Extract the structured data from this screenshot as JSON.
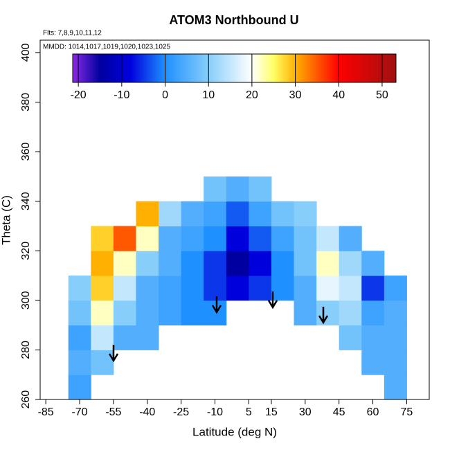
{
  "chart_data": {
    "type": "heatmap",
    "title": "ATOM3 Northbound U",
    "subtitle": "Flts: 7,8,9,10,11,12",
    "annotation": "MMDD: 1014,1017,1019,1020,1023,1025",
    "xlabel": "Latitude (deg N)",
    "ylabel": "Theta (C)",
    "x": [
      -70,
      -60,
      -50,
      -40,
      -30,
      -20,
      -10,
      0,
      10,
      20,
      30,
      40,
      50,
      60,
      70
    ],
    "y": [
      265,
      275,
      285,
      295,
      305,
      315,
      325,
      335,
      345
    ],
    "z": [
      [
        3,
        null,
        null,
        null,
        null,
        null,
        null,
        null,
        null,
        null,
        null,
        null,
        null,
        null,
        5
      ],
      [
        5,
        8,
        null,
        null,
        null,
        null,
        null,
        null,
        null,
        null,
        null,
        null,
        null,
        5,
        5
      ],
      [
        3,
        15,
        5,
        5,
        null,
        null,
        null,
        null,
        null,
        null,
        null,
        null,
        8,
        5,
        5
      ],
      [
        8,
        22,
        10,
        5,
        3,
        0,
        0,
        null,
        null,
        null,
        5,
        10,
        12,
        3,
        5
      ],
      [
        10,
        28,
        15,
        5,
        3,
        0,
        -5,
        -8,
        -5,
        0,
        5,
        18,
        15,
        -5,
        3
      ],
      [
        null,
        30,
        22,
        10,
        5,
        0,
        -5,
        -15,
        -8,
        0,
        8,
        22,
        12,
        5,
        null
      ],
      [
        null,
        28,
        35,
        22,
        5,
        3,
        0,
        -8,
        -3,
        3,
        8,
        15,
        5,
        null,
        null
      ],
      [
        null,
        null,
        null,
        30,
        12,
        5,
        3,
        -3,
        3,
        8,
        10,
        null,
        null,
        null,
        null
      ],
      [
        null,
        null,
        null,
        null,
        null,
        null,
        8,
        5,
        8,
        null,
        null,
        null,
        null,
        null,
        null
      ]
    ],
    "xlim": [
      -87.5,
      85
    ],
    "ylim": [
      260,
      405
    ],
    "xticks": [
      -85,
      -70,
      -55,
      -40,
      -25,
      -10,
      5,
      15,
      30,
      45,
      60,
      75
    ],
    "yticks": [
      260,
      280,
      300,
      320,
      340,
      360,
      380,
      400
    ],
    "colorbar": {
      "lim": [
        -21.3,
        53.2
      ],
      "ticks": [
        -20,
        -10,
        0,
        10,
        20,
        30,
        40,
        50
      ]
    },
    "colorscale": [
      [
        -21.3,
        "#8a2be2"
      ],
      [
        -15,
        "#0000a0"
      ],
      [
        -8,
        "#0000dd"
      ],
      [
        0,
        "#1e90ff"
      ],
      [
        10,
        "#87cefa"
      ],
      [
        20,
        "#ffffff"
      ],
      [
        25,
        "#ffff66"
      ],
      [
        30,
        "#ffb000"
      ],
      [
        40,
        "#ff0000"
      ],
      [
        53.2,
        "#a01010"
      ]
    ]
  }
}
